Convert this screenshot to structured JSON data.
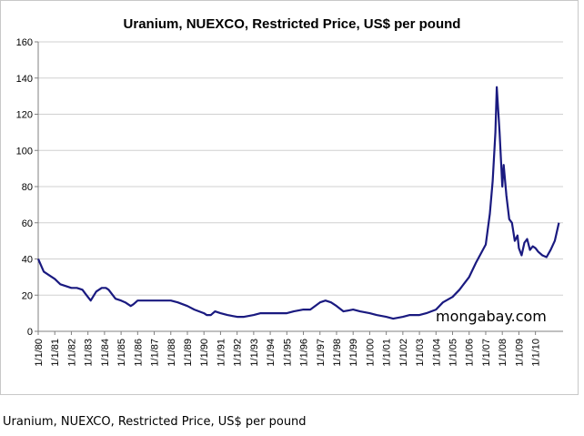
{
  "chart_data": {
    "type": "line",
    "title": "Uranium, NUEXCO, Restricted Price, US$ per pound",
    "xlabel": "",
    "ylabel": "",
    "ylim": [
      0,
      160
    ],
    "yticks": [
      "0",
      "20",
      "40",
      "60",
      "80",
      "100",
      "120",
      "140",
      "160"
    ],
    "xticks": [
      "1/1/80",
      "1/1/81",
      "1/1/82",
      "1/1/83",
      "1/1/84",
      "1/1/85",
      "1/1/86",
      "1/1/87",
      "1/1/88",
      "1/1/89",
      "1/1/90",
      "1/1/91",
      "1/1/92",
      "1/1/93",
      "1/1/94",
      "1/1/95",
      "1/1/96",
      "1/1/97",
      "1/1/98",
      "1/1/99",
      "1/1/00",
      "1/1/01",
      "1/1/02",
      "1/1/03",
      "1/1/04",
      "1/1/05",
      "1/1/06",
      "1/1/07",
      "1/1/08",
      "1/1/09",
      "1/1/10"
    ],
    "xlim": [
      "1980-01",
      "2011-09"
    ],
    "grid": {
      "horizontal": true,
      "vertical": false
    },
    "line_color": "#1a1a80",
    "series": [
      {
        "x": [
          "1980-01",
          "1980-05",
          "1980-09",
          "1981-01",
          "1981-05",
          "1981-09",
          "1982-01",
          "1982-05",
          "1982-09",
          "1982-12",
          "1983-03",
          "1983-07",
          "1983-11",
          "1984-02",
          "1984-04",
          "1984-09",
          "1985-01",
          "1985-04",
          "1985-06",
          "1985-08",
          "1985-10",
          "1986-01",
          "1986-06",
          "1987-01",
          "1987-06",
          "1988-01",
          "1988-06",
          "1989-01",
          "1989-06",
          "1990-01",
          "1990-03",
          "1990-06",
          "1990-09",
          "1991-01",
          "1991-06",
          "1992-01",
          "1992-06",
          "1993-01",
          "1993-06",
          "1994-01",
          "1994-06",
          "1995-01",
          "1995-06",
          "1996-01",
          "1996-06",
          "1997-01",
          "1997-05",
          "1997-09",
          "1998-01",
          "1998-06",
          "1999-01",
          "1999-06",
          "2000-01",
          "2000-06",
          "2001-01",
          "2001-06",
          "2002-01",
          "2002-06",
          "2003-01",
          "2003-06",
          "2004-01",
          "2004-06",
          "2005-01",
          "2005-06",
          "2006-01",
          "2006-06",
          "2007-01",
          "2007-04",
          "2007-06",
          "2007-08",
          "2007-09",
          "2007-11",
          "2008-01",
          "2008-02",
          "2008-04",
          "2008-06",
          "2008-08",
          "2008-10",
          "2008-12",
          "2009-01",
          "2009-03",
          "2009-05",
          "2009-07",
          "2009-09",
          "2009-11",
          "2010-01",
          "2010-03",
          "2010-06",
          "2010-09",
          "2010-12",
          "2011-03",
          "2011-06"
        ],
        "y": [
          40,
          33,
          31,
          29,
          26,
          25,
          24,
          24,
          23,
          20,
          17,
          22,
          24,
          24,
          23,
          18,
          17,
          16,
          15,
          14,
          15,
          17,
          17,
          17,
          17,
          17,
          16,
          14,
          12,
          10,
          9,
          9,
          11,
          10,
          9,
          8,
          8,
          9,
          10,
          10,
          10,
          10,
          11,
          12,
          12,
          16,
          17,
          16,
          14,
          11,
          12,
          11,
          10,
          9,
          8,
          7,
          8,
          9,
          9,
          10,
          12,
          16,
          19,
          23,
          30,
          38,
          48,
          65,
          83,
          110,
          135,
          110,
          80,
          92,
          75,
          62,
          60,
          50,
          53,
          46,
          42,
          49,
          51,
          45,
          47,
          46,
          44,
          42,
          41,
          45,
          50,
          60
        ]
      }
    ]
  },
  "watermark": "mongabay.com",
  "caption": "Uranium, NUEXCO, Restricted Price, US$ per pound"
}
